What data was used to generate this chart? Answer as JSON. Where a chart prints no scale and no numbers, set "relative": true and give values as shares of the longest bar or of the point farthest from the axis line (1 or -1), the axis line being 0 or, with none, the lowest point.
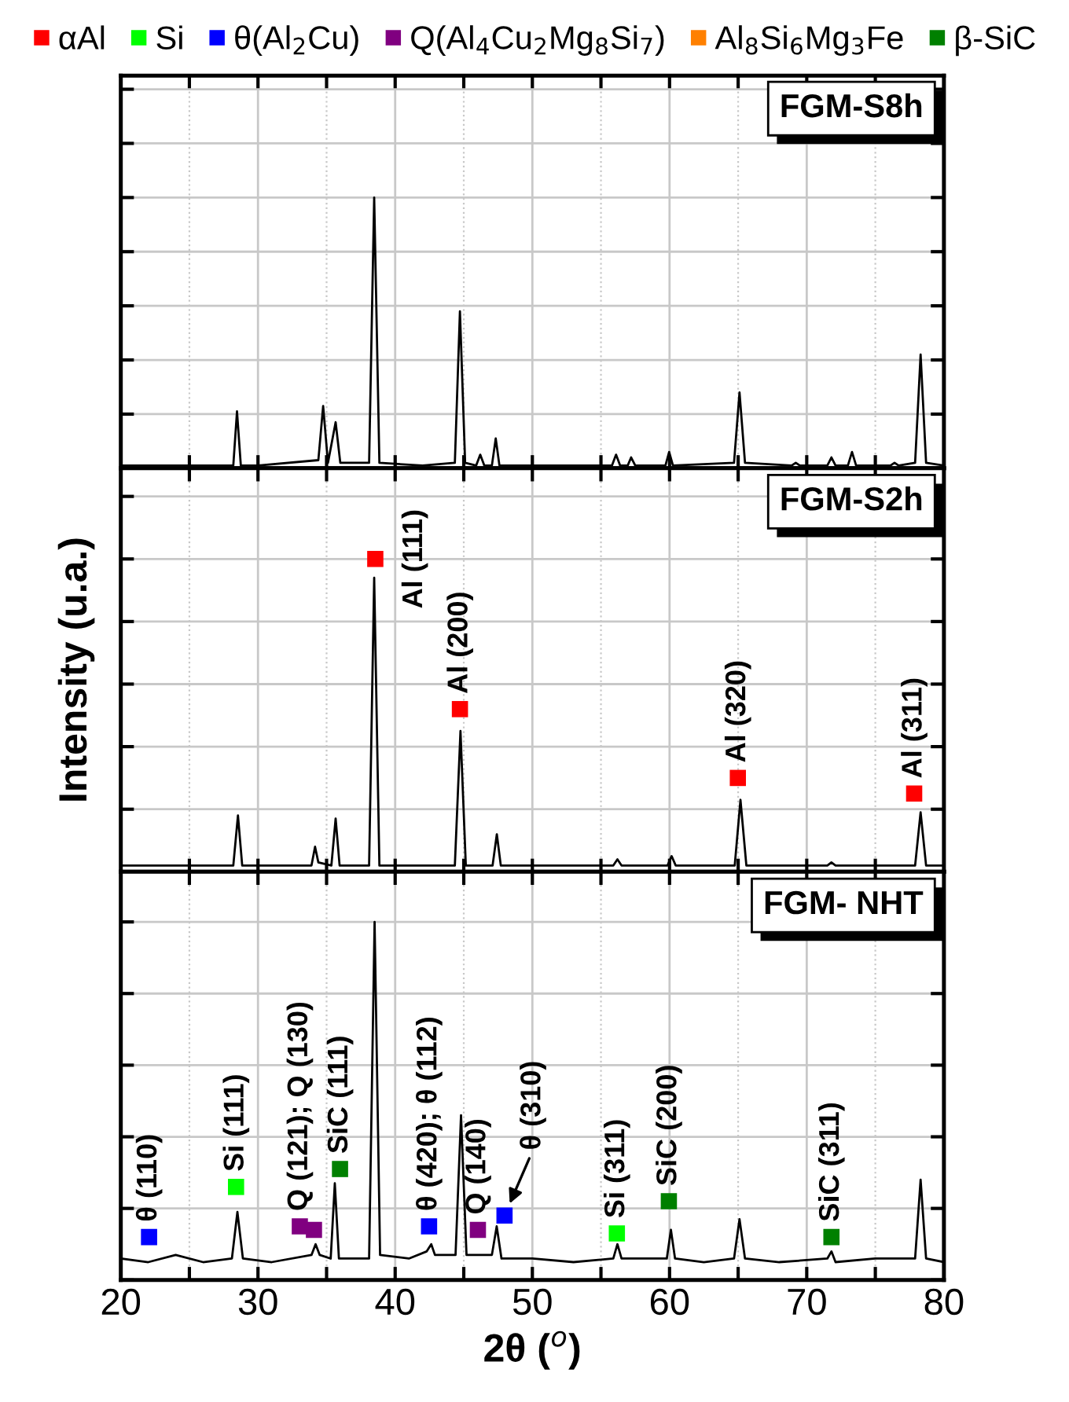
{
  "chart_data": [
    {
      "type": "line",
      "relative": true,
      "annotations": [
        "FGM-S8h"
      ],
      "grid": true,
      "tick_labels": false,
      "marker": "none",
      "line_style": "solid",
      "xlim": [
        20,
        80
      ],
      "xticks": [
        20,
        {
          "value": 25,
          "label": null
        },
        30,
        {
          "value": 35,
          "label": null
        },
        40,
        {
          "value": 45,
          "label": null
        },
        50,
        {
          "value": 55,
          "label": null
        },
        60,
        {
          "value": 65,
          "label": null
        },
        70,
        {
          "value": 75,
          "label": null
        },
        80
      ],
      "series": [
        {
          "color": "#000000",
          "x": [
            20,
            27,
            28.2,
            28.47,
            28.75,
            30,
            34.4,
            34.75,
            35.1,
            35.66,
            36,
            38.1,
            38.47,
            38.85,
            42,
            44.35,
            44.72,
            45.1,
            45.9,
            46.2,
            46.5,
            47.05,
            47.33,
            47.6,
            52,
            55.8,
            56.1,
            56.4,
            56.95,
            57.2,
            57.5,
            59.7,
            59.97,
            60.25,
            64.7,
            65.1,
            65.5,
            68.9,
            69.2,
            69.5,
            71.5,
            71.8,
            72.1,
            73.0,
            73.3,
            73.6,
            76.1,
            76.4,
            76.7,
            77.9,
            78.3,
            78.7,
            80
          ],
          "values": [
            0.01,
            0.01,
            0.01,
            0.21,
            0.01,
            0.01,
            0.03,
            0.23,
            0.02,
            0.17,
            0.02,
            0.02,
            1.0,
            0.02,
            0.01,
            0.02,
            0.58,
            0.02,
            0.01,
            0.05,
            0.01,
            0.01,
            0.11,
            0.01,
            0.01,
            0.01,
            0.05,
            0.01,
            0.01,
            0.04,
            0.01,
            0.01,
            0.06,
            0.01,
            0.02,
            0.28,
            0.02,
            0.01,
            0.02,
            0.01,
            0.01,
            0.04,
            0.01,
            0.01,
            0.06,
            0.01,
            0.01,
            0.02,
            0.01,
            0.02,
            0.42,
            0.02,
            0.01
          ]
        }
      ]
    },
    {
      "type": "line",
      "relative": true,
      "ylabel": "Intensity (u.a.)",
      "legend": "top",
      "grid": true,
      "tick_labels": false,
      "marker": "none",
      "line_style": "solid",
      "xlim": [
        20,
        80
      ],
      "xticks": [
        20,
        {
          "value": 25,
          "label": null
        },
        30,
        {
          "value": 35,
          "label": null
        },
        40,
        {
          "value": 45,
          "label": null
        },
        50,
        {
          "value": 55,
          "label": null
        },
        60,
        {
          "value": 65,
          "label": null
        },
        70,
        {
          "value": 75,
          "label": null
        },
        80
      ],
      "annotations": [
        "FGM-S2h",
        {
          "text": "Al (111)",
          "x": 38.55,
          "y": 1.0
        },
        {
          "text": "Al (200)",
          "x": 44.72,
          "y": 0.52
        },
        {
          "text": "Al (320)",
          "x": 64.98,
          "y": 0.3
        },
        {
          "text": "Al (311)",
          "x": 77.83,
          "y": 0.25
        }
      ],
      "series": [
        {
          "color": "#000000",
          "x": [
            20,
            28.2,
            28.54,
            28.85,
            33.9,
            34.16,
            34.4,
            35.35,
            35.66,
            35.95,
            38.1,
            38.47,
            38.85,
            44.35,
            44.76,
            45.15,
            47.1,
            47.41,
            47.7,
            55.9,
            56.2,
            56.5,
            59.85,
            60.15,
            60.45,
            64.75,
            65.17,
            65.6,
            71.5,
            71.8,
            72.1,
            77.9,
            78.3,
            78.7,
            80
          ],
          "values": [
            0.02,
            0.02,
            0.18,
            0.02,
            0.02,
            0.08,
            0.03,
            0.02,
            0.17,
            0.02,
            0.02,
            0.94,
            0.02,
            0.02,
            0.45,
            0.02,
            0.02,
            0.12,
            0.02,
            0.02,
            0.04,
            0.02,
            0.02,
            0.05,
            0.02,
            0.02,
            0.23,
            0.02,
            0.02,
            0.03,
            0.02,
            0.02,
            0.19,
            0.02,
            0.02
          ]
        },
        {
          "type": "scatter",
          "marker": "square",
          "name": "αAl",
          "color": "#ff0000",
          "x": [
            38.55,
            44.72,
            64.98,
            77.83
          ],
          "values": [
            1.0,
            0.52,
            0.3,
            0.25
          ]
        }
      ]
    },
    {
      "type": "line",
      "relative": true,
      "xlabel": "2θ ($^{o}$)",
      "legend": "top",
      "grid": true,
      "tick_labels": "x",
      "marker": "none",
      "line_style": "solid",
      "xlim": [
        20,
        80
      ],
      "xticks": [
        20,
        {
          "value": 25,
          "label": null
        },
        30,
        {
          "value": 35,
          "label": null
        },
        40,
        {
          "value": 45,
          "label": null
        },
        50,
        {
          "value": 55,
          "label": null
        },
        60,
        {
          "value": 65,
          "label": null
        },
        70,
        {
          "value": 75,
          "label": null
        },
        80
      ],
      "annotations": [
        "FGM- NHT",
        {
          "text": "θ (110)",
          "x": 22.06,
          "y": 0.12
        },
        {
          "text": "Si (111)",
          "x": 28.4,
          "y": 0.26
        },
        {
          "text": "Q (121); Q (130)",
          "x": 33.05,
          "y": 0.15
        },
        {
          "text": "SiC (111)",
          "x": 35.98,
          "y": 0.31
        },
        {
          "text": "θ (420); θ (112)",
          "x": 42.47,
          "y": 0.15
        },
        {
          "text": "Q (140)",
          "x": 46.03,
          "y": 0.14
        },
        {
          "text": "θ (310)",
          "x": 47.97,
          "y": 0.18
        },
        {
          "text": "Si (311)",
          "x": 56.16,
          "y": 0.13
        },
        {
          "text": "SiC (200)",
          "x": 59.95,
          "y": 0.22
        },
        {
          "text": "SiC (311)",
          "x": 71.8,
          "y": 0.12
        }
      ],
      "series": [
        {
          "color": "#000000",
          "x": [
            20,
            22,
            24,
            26,
            28.1,
            28.5,
            28.9,
            31,
            33.9,
            34.2,
            34.5,
            35.3,
            35.6,
            35.9,
            38.1,
            38.5,
            38.9,
            41,
            42.3,
            42.63,
            42.9,
            44.4,
            44.8,
            45.2,
            47.05,
            47.4,
            47.75,
            50,
            53,
            55.9,
            56.2,
            56.5,
            59.8,
            60.1,
            60.4,
            62.5,
            64.7,
            65.1,
            65.5,
            68,
            71.5,
            71.8,
            72.1,
            75,
            77.9,
            78.3,
            78.7,
            80
          ],
          "values": [
            0.06,
            0.05,
            0.07,
            0.05,
            0.06,
            0.19,
            0.06,
            0.05,
            0.07,
            0.1,
            0.07,
            0.06,
            0.27,
            0.06,
            0.06,
            1.0,
            0.07,
            0.06,
            0.08,
            0.1,
            0.07,
            0.07,
            0.46,
            0.07,
            0.07,
            0.15,
            0.06,
            0.06,
            0.05,
            0.06,
            0.1,
            0.06,
            0.06,
            0.14,
            0.06,
            0.05,
            0.06,
            0.17,
            0.06,
            0.05,
            0.06,
            0.08,
            0.05,
            0.06,
            0.06,
            0.28,
            0.06,
            0.05
          ]
        },
        {
          "type": "scatter",
          "marker": "square",
          "name": "Si",
          "color": "#00ff00",
          "x": [
            28.4,
            56.16
          ],
          "values": [
            0.26,
            0.13
          ]
        },
        {
          "type": "scatter",
          "marker": "square",
          "name": "θ(Al$_{2}$Cu)",
          "color": "#0000ff",
          "x": [
            22.06,
            42.47,
            47.97
          ],
          "values": [
            0.12,
            0.15,
            0.18
          ]
        },
        {
          "type": "scatter",
          "marker": "square",
          "name": "Q(Al$_{4}$Cu$_{2}$Mg$_{8}$Si$_{7}$)",
          "color": "#800080",
          "x": [
            33.05,
            34.08,
            46.03
          ],
          "values": [
            0.15,
            0.14,
            0.14
          ]
        },
        {
          "type": "scatter",
          "marker": "square",
          "name": "Al$_{8}$Si$_{6}$Mg$_{3}$Fe",
          "color": "#ff8000"
        },
        {
          "type": "scatter",
          "marker": "square",
          "name": "β-SiC",
          "color": "#008000",
          "x": [
            35.98,
            59.95,
            71.8
          ],
          "values": [
            0.31,
            0.22,
            0.12
          ]
        }
      ]
    }
  ]
}
